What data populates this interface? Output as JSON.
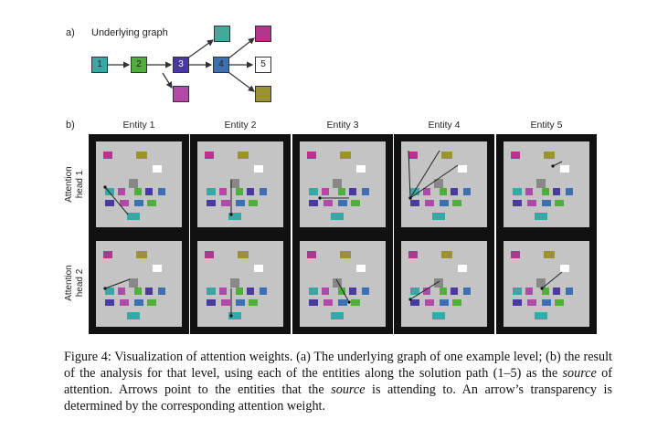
{
  "part_a": {
    "label": "a)",
    "title": "Underlying graph"
  },
  "graph": {
    "nodes": [
      {
        "id": "n1",
        "label": "1",
        "color": "#3aa7a6"
      },
      {
        "id": "n2",
        "label": "2",
        "color": "#4fae3c"
      },
      {
        "id": "n3",
        "label": "3",
        "color": "#4a3aa0"
      },
      {
        "id": "n4",
        "label": "4",
        "color": "#3d6fb3"
      },
      {
        "id": "n5",
        "label": "5",
        "color": "#ffffff"
      },
      {
        "id": "top",
        "label": "",
        "color": "#45a89a"
      },
      {
        "id": "pink_top",
        "label": "",
        "color": "#b0368e"
      },
      {
        "id": "pink_bottom",
        "label": "",
        "color": "#b04aa8"
      },
      {
        "id": "olive",
        "label": "",
        "color": "#9c9233"
      }
    ]
  },
  "part_b": {
    "label": "b)",
    "entities": [
      "Entity 1",
      "Entity 2",
      "Entity 3",
      "Entity 4",
      "Entity 5"
    ],
    "heads": [
      "Attention head 1",
      "Attention head 2"
    ]
  },
  "caption": {
    "p1": "Figure 4: Visualization of attention weights. (a) The underlying graph of one example level; (b) the result of the analysis for that level, using each of the entities along the solution path (1–5) as the ",
    "source1": "source",
    "p2": " of attention. Arrows point to the entities that the ",
    "source2": "source",
    "p3": " is attending to. An arrow’s transparency is determined by the corresponding attention weight."
  }
}
